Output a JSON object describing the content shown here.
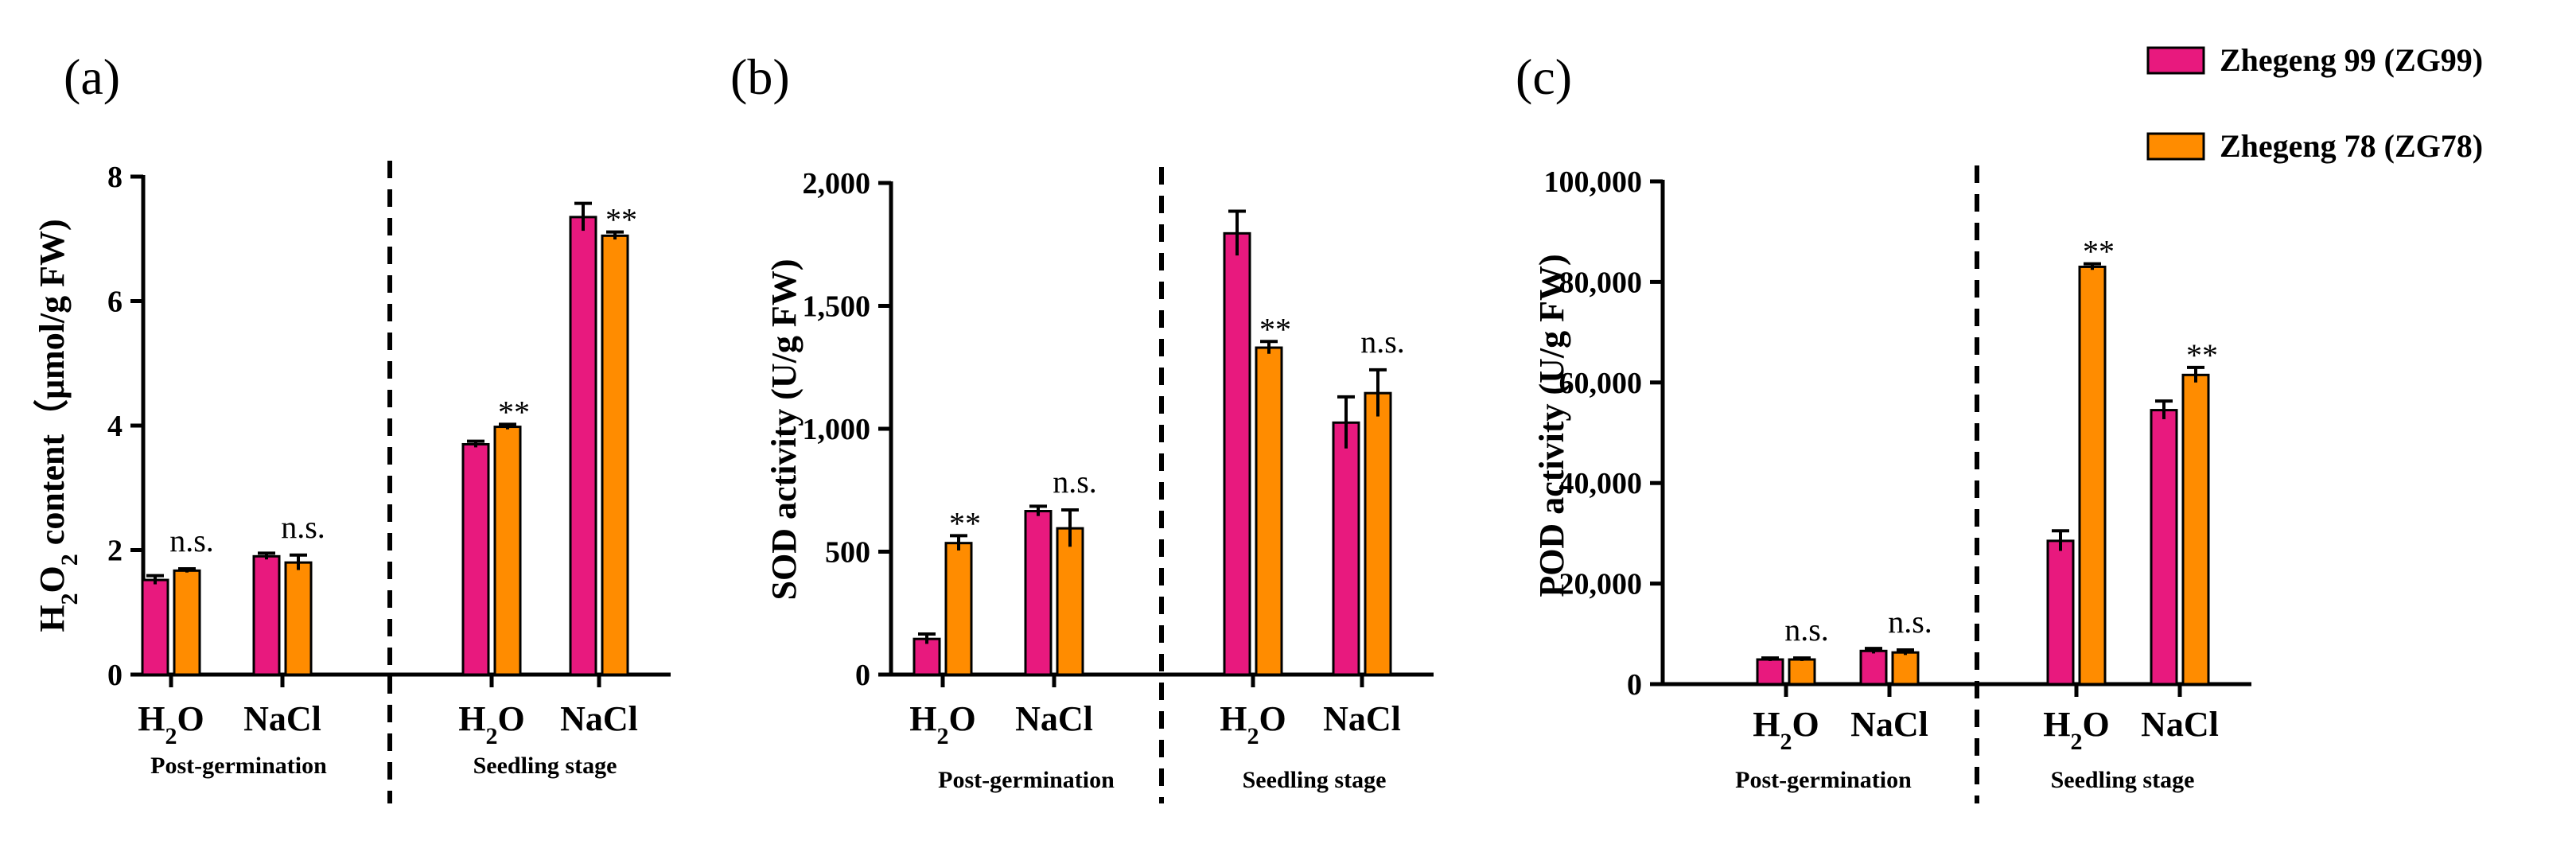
{
  "legend": {
    "series": [
      {
        "name": "Zhegeng 99 (ZG99)",
        "color": "#E8197E"
      },
      {
        "name": "Zhegeng 78 (ZG78)",
        "color": "#FF8C00"
      }
    ]
  },
  "chart_data": [
    {
      "type": "bar",
      "panel_label": "(a)",
      "ylabel_main": "H",
      "ylabel_sub1": "2",
      "ylabel_mid": "O",
      "ylabel_sub2": "2",
      "ylabel_rest": " content（μmol/g FW)",
      "ylim": [
        0,
        8
      ],
      "yticks": [
        "0",
        "2",
        "4",
        "6",
        "8"
      ],
      "ytick_values": [
        0,
        2,
        4,
        6,
        8
      ],
      "groups": [
        {
          "stage": "Post-germination",
          "categories": [
            {
              "main": "H",
              "sub": "2",
              "rest": "O"
            },
            {
              "main": "NaCl",
              "sub": "",
              "rest": ""
            }
          ]
        },
        {
          "stage": "Seedling stage",
          "categories": [
            {
              "main": "H",
              "sub": "2",
              "rest": "O"
            },
            {
              "main": "NaCl",
              "sub": "",
              "rest": ""
            }
          ]
        }
      ],
      "series": [
        {
          "name": "Zhegeng 99 (ZG99)",
          "values": [
            1.52,
            1.9,
            3.7,
            7.35
          ],
          "errors": [
            0.07,
            0.05,
            0.05,
            0.22
          ]
        },
        {
          "name": "Zhegeng 78 (ZG78)",
          "values": [
            1.67,
            1.8,
            3.98,
            7.05
          ],
          "errors": [
            0.03,
            0.12,
            0.04,
            0.06
          ]
        }
      ],
      "annotations": [
        "n.s.",
        "n.s.",
        "**",
        "**"
      ]
    },
    {
      "type": "bar",
      "panel_label": "(b)",
      "ylabel_main": "SOD activity (U/g FW)",
      "ylim": [
        0,
        2000
      ],
      "yticks": [
        "0",
        "500",
        "1,000",
        "1,500",
        "2,000"
      ],
      "ytick_values": [
        0,
        500,
        1000,
        1500,
        2000
      ],
      "groups": [
        {
          "stage": "Post-germination",
          "categories": [
            {
              "main": "H",
              "sub": "2",
              "rest": "O"
            },
            {
              "main": "NaCl",
              "sub": "",
              "rest": ""
            }
          ]
        },
        {
          "stage": "Seedling stage",
          "categories": [
            {
              "main": "H",
              "sub": "2",
              "rest": "O"
            },
            {
              "main": "NaCl",
              "sub": "",
              "rest": ""
            }
          ]
        }
      ],
      "series": [
        {
          "name": "Zhegeng 99 (ZG99)",
          "values": [
            145,
            665,
            1795,
            1025
          ],
          "errors": [
            20,
            20,
            90,
            105
          ]
        },
        {
          "name": "Zhegeng 78 (ZG78)",
          "values": [
            535,
            595,
            1330,
            1145
          ],
          "errors": [
            30,
            75,
            25,
            95
          ]
        }
      ],
      "annotations": [
        "**",
        "n.s.",
        "**",
        "n.s."
      ]
    },
    {
      "type": "bar",
      "panel_label": "(c)",
      "ylabel_main": "POD activity (U/g  FW)",
      "ylim": [
        0,
        100000
      ],
      "yticks": [
        "0",
        "20,000",
        "40,000",
        "60,000",
        "80,000",
        "100,000"
      ],
      "ytick_values": [
        0,
        20000,
        40000,
        60000,
        80000,
        100000
      ],
      "groups": [
        {
          "stage": "Post-germination",
          "categories": [
            {
              "main": "H",
              "sub": "2",
              "rest": "O"
            },
            {
              "main": "NaCl",
              "sub": "",
              "rest": ""
            }
          ]
        },
        {
          "stage": "Seedling stage",
          "categories": [
            {
              "main": "H",
              "sub": "2",
              "rest": "O"
            },
            {
              "main": "NaCl",
              "sub": "",
              "rest": ""
            }
          ]
        }
      ],
      "series": [
        {
          "name": "Zhegeng 99 (ZG99)",
          "values": [
            4900,
            6600,
            28500,
            54500
          ],
          "errors": [
            300,
            500,
            2000,
            1800
          ]
        },
        {
          "name": "Zhegeng 78 (ZG78)",
          "values": [
            4900,
            6300,
            83000,
            61500
          ],
          "errors": [
            300,
            500,
            600,
            1500
          ]
        }
      ],
      "annotations": [
        "n.s.",
        "n.s.",
        "**",
        "**"
      ]
    }
  ]
}
